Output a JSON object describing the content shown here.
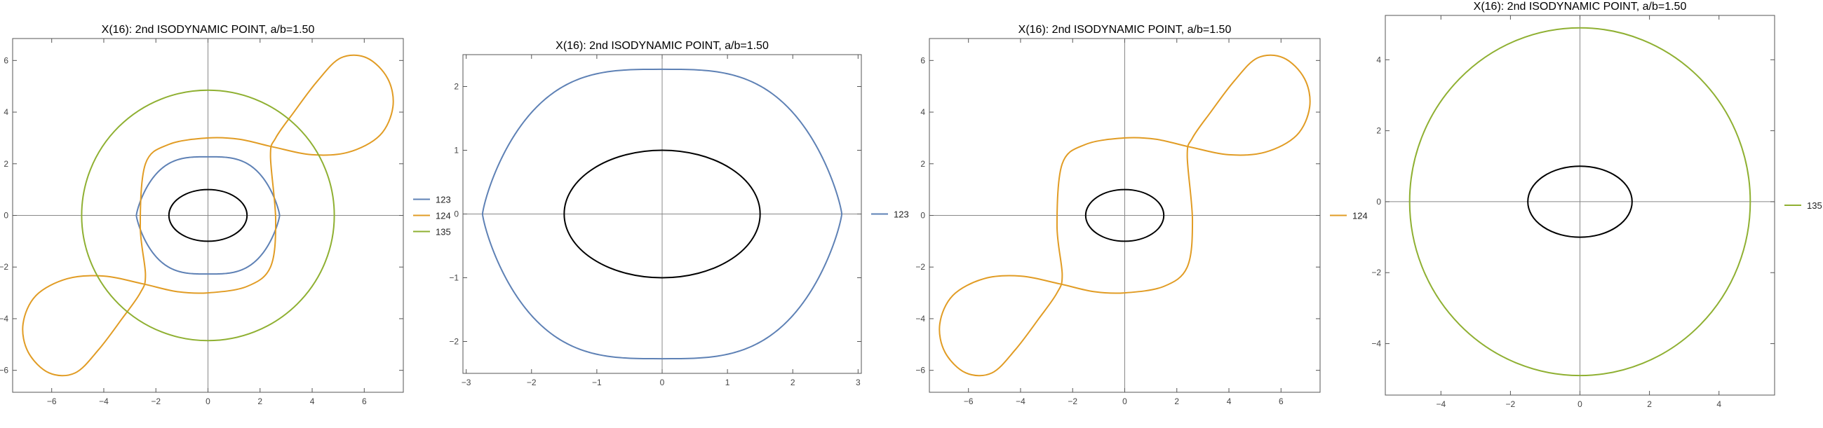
{
  "chart_data": [
    {
      "type": "line",
      "title": "X(16): 2nd ISODYNAMIC POINT, a/b=1.50",
      "xlabel": "",
      "ylabel": "",
      "xlim": [
        -7.5,
        7.5
      ],
      "ylim": [
        -6.85,
        6.85
      ],
      "xticks": [
        -6,
        -4,
        -2,
        0,
        2,
        4,
        6
      ],
      "yticks": [
        -6,
        -4,
        -2,
        0,
        2,
        4,
        6
      ],
      "grid": false,
      "legend_position": "right",
      "ellipse": {
        "a": 1.5,
        "b": 1.0,
        "color": "#000000"
      },
      "series": [
        {
          "name": "123",
          "color": "#5e81b5",
          "curve": "cusped-oval",
          "rx": 2.75,
          "ry": 2.27
        },
        {
          "name": "124",
          "color": "#e19c24",
          "curve": "s-curve",
          "scale": 1.0
        },
        {
          "name": "135",
          "color": "#8fb032",
          "curve": "circle",
          "r": 4.85
        }
      ]
    },
    {
      "type": "line",
      "title": "X(16): 2nd ISODYNAMIC POINT, a/b=1.50",
      "xlabel": "",
      "ylabel": "",
      "xlim": [
        -3.05,
        3.05
      ],
      "ylim": [
        -2.5,
        2.5
      ],
      "xticks": [
        -3,
        -2,
        -1,
        0,
        1,
        2,
        3
      ],
      "yticks": [
        -2,
        -1,
        0,
        1,
        2
      ],
      "grid": false,
      "legend_position": "right",
      "ellipse": {
        "a": 1.5,
        "b": 1.0,
        "color": "#000000"
      },
      "series": [
        {
          "name": "123",
          "color": "#5e81b5",
          "curve": "cusped-oval",
          "rx": 2.75,
          "ry": 2.27
        }
      ]
    },
    {
      "type": "line",
      "title": "X(16): 2nd ISODYNAMIC POINT, a/b=1.50",
      "xlabel": "",
      "ylabel": "",
      "xlim": [
        -7.5,
        7.5
      ],
      "ylim": [
        -6.85,
        6.85
      ],
      "xticks": [
        -6,
        -4,
        -2,
        0,
        2,
        4,
        6
      ],
      "yticks": [
        -6,
        -4,
        -2,
        0,
        2,
        4,
        6
      ],
      "grid": false,
      "legend_position": "right",
      "ellipse": {
        "a": 1.5,
        "b": 1.0,
        "color": "#000000"
      },
      "series": [
        {
          "name": "124",
          "color": "#e19c24",
          "curve": "s-curve",
          "scale": 1.0
        }
      ]
    },
    {
      "type": "line",
      "title": "X(16): 2nd ISODYNAMIC POINT, a/b=1.50",
      "xlabel": "",
      "ylabel": "",
      "xlim": [
        -5.6,
        5.6
      ],
      "ylim": [
        -5.45,
        5.25
      ],
      "xticks": [
        -4,
        -2,
        0,
        2,
        4
      ],
      "yticks": [
        -4,
        -2,
        0,
        2,
        4
      ],
      "grid": false,
      "legend_position": "right",
      "ellipse": {
        "a": 1.5,
        "b": 1.0,
        "color": "#000000"
      },
      "series": [
        {
          "name": "135",
          "color": "#8fb032",
          "curve": "circle",
          "r": 4.9
        }
      ]
    }
  ]
}
